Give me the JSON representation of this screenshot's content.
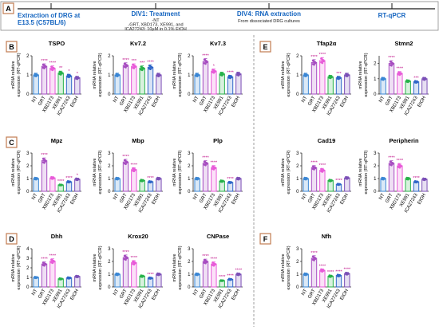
{
  "timeline": {
    "panel_label": "A",
    "steps": [
      {
        "title": "Extraction of DRG at",
        "title2": "E13.5 (C57BL/6)",
        "sub": []
      },
      {
        "title": "DIV1: Treatment",
        "title2": "",
        "sub": [
          "-NT",
          "-GRT, XBD173, XE991, and",
          "ICA27243: 10µM in 0.1% EtOH"
        ]
      },
      {
        "title": "DIV4: RNA extraction",
        "title2": "",
        "sub": [
          "From dissociated DRG cultures"
        ]
      },
      {
        "title": "RT-qPCR",
        "title2": "",
        "sub": []
      }
    ]
  },
  "colors": {
    "NT": "#3a86d4",
    "GRT": "#a64dc0",
    "XBD173": "#e85ad8",
    "XE991": "#27b24a",
    "ICA27243": "#2f66c8",
    "EtOH": "#7b4fb7",
    "accent": "#1565c0",
    "sig": "#c0128a"
  },
  "chart_data": [
    {
      "type": "bar",
      "panel": "B",
      "title": "TSPO",
      "ylabel": "mRNA relative\nexpression (RT-qPCR)",
      "categories": [
        "NT",
        "GRT",
        "XBD173",
        "XE991",
        "ICA27243",
        "EtOH"
      ],
      "values": [
        1.0,
        1.45,
        1.35,
        1.1,
        0.95,
        0.85
      ],
      "ylim": [
        0,
        2
      ],
      "yticks": [
        0,
        1,
        2
      ],
      "stars": [
        "",
        "****",
        "****",
        "**",
        "*",
        "*"
      ]
    },
    {
      "type": "bar",
      "panel": "",
      "title": "Kv7.2",
      "ylabel": "mRNA relative\nexpression (RT-qPCR)",
      "categories": [
        "NT",
        "GRT",
        "XBD173",
        "XE991",
        "ICA27243",
        "EtOH"
      ],
      "values": [
        1.0,
        1.5,
        1.45,
        1.35,
        1.4,
        1.0
      ],
      "ylim": [
        0,
        2
      ],
      "yticks": [
        0,
        1,
        2
      ],
      "stars": [
        "",
        "****",
        "***",
        "***",
        "****",
        ""
      ]
    },
    {
      "type": "bar",
      "panel": "",
      "title": "Kv7.3",
      "ylabel": "mRNA relative\nexpression (RT-qPCR)",
      "categories": [
        "NT",
        "GRT",
        "XBD173",
        "XE991",
        "ICA27243",
        "EtOH"
      ],
      "values": [
        1.0,
        1.7,
        1.2,
        1.05,
        0.9,
        1.05
      ],
      "ylim": [
        0,
        2
      ],
      "yticks": [
        0,
        1,
        2
      ],
      "stars": [
        "",
        "****",
        "*",
        "",
        "****",
        ""
      ]
    },
    {
      "type": "bar",
      "panel": "E",
      "title": "Tfap2α",
      "ylabel": "mRNA relative\nexpression (RT-qPCR)",
      "categories": [
        "NT",
        "GRT",
        "XBD173",
        "XE991",
        "ICA27243",
        "EtOH"
      ],
      "values": [
        1.0,
        1.65,
        1.75,
        0.9,
        0.85,
        1.0
      ],
      "ylim": [
        0,
        2
      ],
      "yticks": [
        0,
        1,
        2
      ],
      "stars": [
        "",
        "****",
        "****",
        "",
        "***",
        ""
      ]
    },
    {
      "type": "bar",
      "panel": "",
      "title": "Stmn2",
      "ylabel": "mRNA relative\nexpression (RT-qPCR)",
      "categories": [
        "NT",
        "GRT",
        "XBD173",
        "XE991",
        "ICA27243",
        "EtOH"
      ],
      "values": [
        1.0,
        2.0,
        1.35,
        0.85,
        0.8,
        1.0
      ],
      "ylim": [
        0,
        2.5
      ],
      "yticks": [
        0,
        1,
        2
      ],
      "stars": [
        "",
        "****",
        "****",
        "",
        "***",
        ""
      ]
    },
    {
      "type": "bar",
      "panel": "C",
      "title": "Mpz",
      "ylabel": "mRNA relative\nexpression (RT-qPCR)",
      "categories": [
        "NT",
        "GRT",
        "XBD173",
        "XE991",
        "ICA27243",
        "EtOH"
      ],
      "values": [
        1.0,
        2.4,
        1.05,
        0.5,
        0.75,
        0.95
      ],
      "ylim": [
        0,
        3
      ],
      "yticks": [
        0,
        1,
        2,
        3
      ],
      "stars": [
        "",
        "****",
        "",
        "****",
        "****",
        "*"
      ]
    },
    {
      "type": "bar",
      "panel": "",
      "title": "Mbp",
      "ylabel": "mRNA relative\nexpression (RT-qPCR)",
      "categories": [
        "NT",
        "GRT",
        "XBD173",
        "XE991",
        "ICA27243",
        "EtOH"
      ],
      "values": [
        1.0,
        2.3,
        1.7,
        0.85,
        0.75,
        1.0
      ],
      "ylim": [
        0,
        3
      ],
      "yticks": [
        0,
        1,
        2,
        3
      ],
      "stars": [
        "",
        "****",
        "****",
        "",
        "****",
        ""
      ]
    },
    {
      "type": "bar",
      "panel": "",
      "title": "Plp",
      "ylabel": "mRNA relative\nexpression (RT-qPCR)",
      "categories": [
        "NT",
        "GRT",
        "XBD173",
        "XE991",
        "ICA27243",
        "EtOH"
      ],
      "values": [
        1.0,
        2.2,
        1.85,
        0.8,
        0.7,
        1.0
      ],
      "ylim": [
        0,
        3
      ],
      "yticks": [
        0,
        1,
        2,
        3
      ],
      "stars": [
        "",
        "****",
        "****",
        "",
        "****",
        ""
      ]
    },
    {
      "type": "bar",
      "panel": "",
      "title": "Cad19",
      "ylabel": "mRNA relative\nexpression (RT-qPCR)",
      "categories": [
        "NT",
        "GRT",
        "XBD173",
        "XE991",
        "ICA27243",
        "EtOH"
      ],
      "values": [
        1.0,
        1.85,
        1.65,
        0.85,
        0.55,
        1.05
      ],
      "ylim": [
        0,
        3
      ],
      "yticks": [
        0,
        1,
        2,
        3
      ],
      "stars": [
        "",
        "****",
        "****",
        "",
        "****",
        ""
      ]
    },
    {
      "type": "bar",
      "panel": "",
      "title": "Peripherin",
      "ylabel": "mRNA relative\nexpression (RT-qPCR)",
      "categories": [
        "NT",
        "GRT",
        "XBD173",
        "XE991",
        "ICA27243",
        "EtOH"
      ],
      "values": [
        1.0,
        2.2,
        2.0,
        1.0,
        0.75,
        0.95
      ],
      "ylim": [
        0,
        3
      ],
      "yticks": [
        0,
        1,
        2,
        3
      ],
      "stars": [
        "",
        "****",
        "****",
        "",
        "****",
        ""
      ]
    },
    {
      "type": "bar",
      "panel": "D",
      "title": "Dhh",
      "ylabel": "mRNA relative\nexpression (RT-qPCR)",
      "categories": [
        "NT",
        "GRT",
        "XBD173",
        "XE991",
        "ICA27243",
        "EtOH"
      ],
      "values": [
        1.0,
        2.4,
        2.7,
        0.85,
        0.95,
        1.1
      ],
      "ylim": [
        0,
        4
      ],
      "yticks": [
        0,
        1,
        2,
        3,
        4
      ],
      "stars": [
        "",
        "****",
        "****",
        "",
        "",
        ""
      ]
    },
    {
      "type": "bar",
      "panel": "",
      "title": "Krox20",
      "ylabel": "mRNA relative\nexpression (RT-qPCR)",
      "categories": [
        "NT",
        "GRT",
        "XBD173",
        "XE991",
        "ICA27243",
        "EtOH"
      ],
      "values": [
        1.0,
        2.3,
        1.9,
        0.85,
        0.7,
        1.0
      ],
      "ylim": [
        0,
        3
      ],
      "yticks": [
        0,
        1,
        2,
        3
      ],
      "stars": [
        "",
        "****",
        "****",
        "",
        "****",
        ""
      ]
    },
    {
      "type": "bar",
      "panel": "",
      "title": "CNPase",
      "ylabel": "mRNA relative\nexpression (RT-qPCR)",
      "categories": [
        "NT",
        "GRT",
        "XBD173",
        "XE991",
        "ICA27243",
        "EtOH"
      ],
      "values": [
        1.0,
        2.0,
        1.8,
        0.5,
        0.6,
        1.0
      ],
      "ylim": [
        0,
        3
      ],
      "yticks": [
        0,
        1,
        2,
        3
      ],
      "stars": [
        "",
        "****",
        "****",
        "****",
        "****",
        "****"
      ]
    },
    {
      "type": "bar",
      "panel": "F",
      "title": "Nfh",
      "ylabel": "mRNA relative\nexpression (RT-qPCR)",
      "categories": [
        "NT",
        "GRT",
        "XBD173",
        "XE991",
        "ICA27243",
        "EtOH"
      ],
      "values": [
        1.0,
        2.25,
        1.3,
        0.85,
        0.9,
        1.05
      ],
      "ylim": [
        0,
        3
      ],
      "yticks": [
        0,
        1,
        2,
        3
      ],
      "stars": [
        "",
        "****",
        "****",
        "****",
        "****",
        "****"
      ]
    }
  ]
}
